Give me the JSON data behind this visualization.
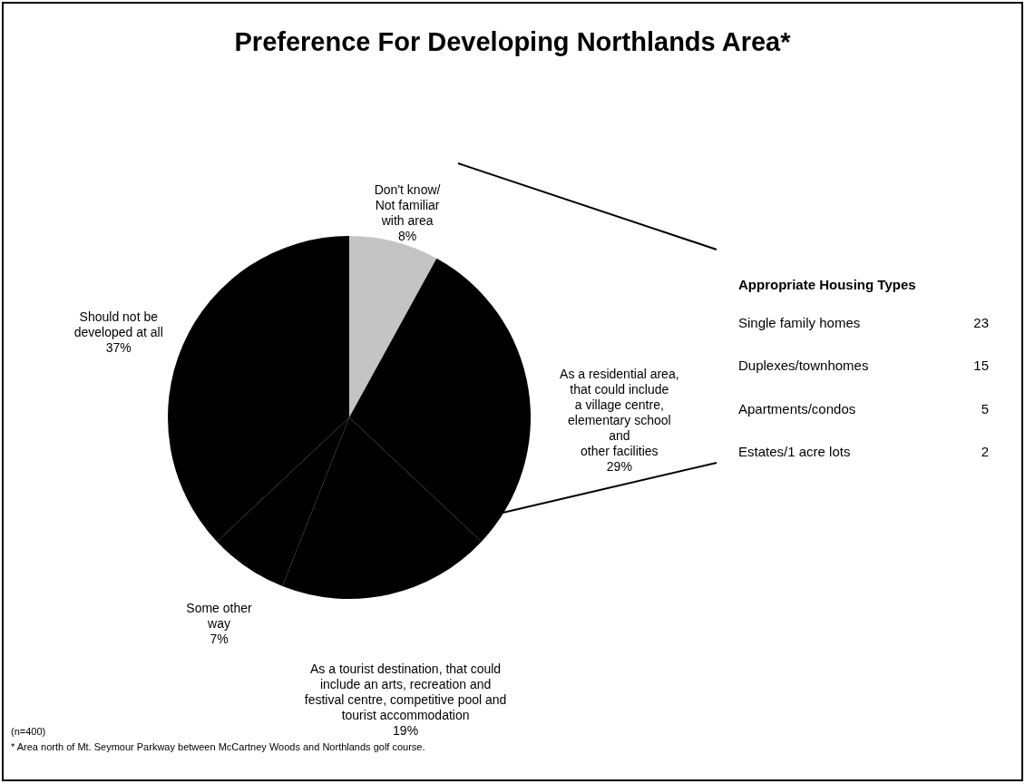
{
  "chart_data": [
    {
      "type": "pie",
      "title": "Preference For Developing Northlands Area*",
      "categories": [
        "Don't know/\nNot familiar\nwith area",
        "As a residential area,\nthat could include\na village centre,\nelementary school\nand\nother facilities",
        "As a tourist destination, that could\ninclude an arts, recreation and\nfestival centre, competitive pool and\ntourist accommodation",
        "Some other\nway",
        "Should not be\ndeveloped at all"
      ],
      "values": [
        8,
        29,
        19,
        7,
        37
      ],
      "value_labels": [
        "8%",
        "29%",
        "19%",
        "7%",
        "37%"
      ],
      "colors": [
        "#c4c4c4",
        "#000000",
        "#000000",
        "#000000",
        "#000000"
      ],
      "annotations": [
        "(n=400)",
        "* Area north of Mt. Seymour Parkway between McCartney Woods and Northlands golf course."
      ]
    },
    {
      "type": "other",
      "title": "Appropriate Housing Types",
      "categories": [
        "Single family homes",
        "Duplexes/townhomes",
        "Apartments/condos",
        "Estates/1 acre lots"
      ],
      "values": [
        23,
        15,
        5,
        2
      ],
      "data_labels": true
    }
  ]
}
